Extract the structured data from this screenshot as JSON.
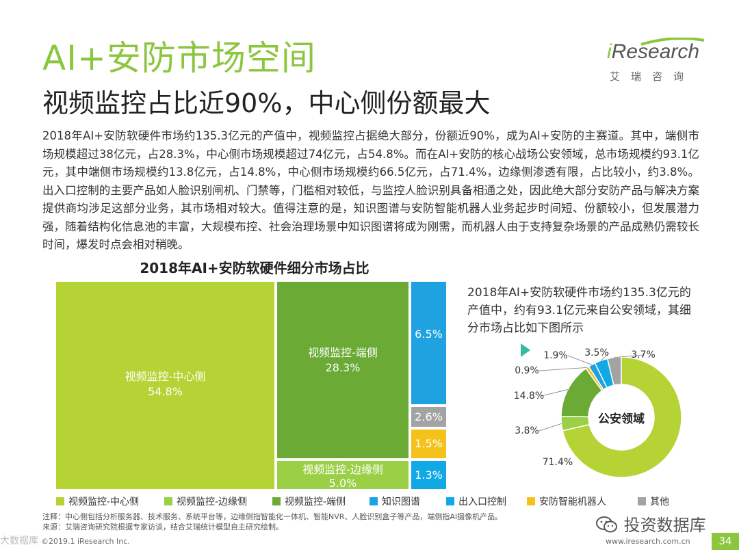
{
  "header": {
    "title": "AI+安防市场空间",
    "subtitle": "视频监控占比近90%，中心侧份额最大",
    "logo_text_i": "i",
    "logo_text_rest": "Research",
    "logo_cn": "艾瑞咨询"
  },
  "paragraph": "2018年AI+安防软硬件市场约135.3亿元的产值中，视频监控占据绝大部分，份额近90%，成为AI+安防的主赛道。其中，端侧市场规模超过38亿元，占28.3%，中心侧市场规模超过74亿元，占54.8%。而在AI+安防的核心战场公安领域，总市场规模约93.1亿元，其中端侧市场规模约13.8亿元，占14.8%，中心侧市场规模约66.5亿元，占71.4%，边缘侧渗透有限，占比较小，约3.8%。出入口控制的主要产品如人脸识别闸机、门禁等，门槛相对较低，与监控人脸识别具备相通之处，因此绝大部分安防产品与解决方案提供商均涉足这部分业务，其市场相对较大。值得注意的是，知识图谱与安防智能机器人业务起步时间短、份额较小，但发展潜力强，随着结构化信息池的丰富，大规模布控、社会治理场景中知识图谱将成为刚需，而机器人由于支持复杂场景的产品成熟仍需较长时间，爆发时点会相对稍晚。",
  "chart_data": [
    {
      "type": "treemap",
      "title": "2018年AI+安防软硬件细分市场占比",
      "items": [
        {
          "name": "视频监控-中心侧",
          "value": 54.8,
          "label": "54.8%",
          "color": "#b5d334"
        },
        {
          "name": "视频监控-端侧",
          "value": 28.3,
          "label": "28.3%",
          "color": "#6aaa35"
        },
        {
          "name": "视频监控-边缘侧",
          "value": 5.0,
          "label": "5.0%",
          "color": "#9bcf45"
        },
        {
          "name": "知识图谱",
          "value": 6.5,
          "label": "6.5%",
          "color": "#1fa3e0"
        },
        {
          "name": "其他",
          "value": 2.6,
          "label": "2.6%",
          "color": "#a3a3a3"
        },
        {
          "name": "安防智能机器人",
          "value": 1.5,
          "label": "1.5%",
          "color": "#f5c21b"
        },
        {
          "name": "出入口控制",
          "value": 1.3,
          "label": "1.3%",
          "color": "#10a9e5"
        }
      ]
    },
    {
      "type": "pie",
      "center_label": "公安领域",
      "slices": [
        {
          "name": "视频监控-中心侧",
          "value": 71.4,
          "label": "71.4%",
          "color": "#b5d334"
        },
        {
          "name": "视频监控-边缘侧",
          "value": 3.8,
          "label": "3.8%",
          "color": "#9bcf45"
        },
        {
          "name": "视频监控-端侧",
          "value": 14.8,
          "label": "14.8%",
          "color": "#6aaa35"
        },
        {
          "name": "安防智能机器人",
          "value": 0.9,
          "label": "0.9%",
          "color": "#f5c21b"
        },
        {
          "name": "知识图谱",
          "value": 1.9,
          "label": "1.9%",
          "color": "#1fa3e0"
        },
        {
          "name": "出入口控制",
          "value": 3.5,
          "label": "3.5%",
          "color": "#10a9e5"
        },
        {
          "name": "其他",
          "value": 3.7,
          "label": "3.7%",
          "color": "#a3a3a3"
        }
      ]
    }
  ],
  "right_text": "2018年AI+安防软硬件市场约135.3亿元的产值中，约有93.1亿元来自公安领域，其细分市场占比如下图所示",
  "legend": [
    {
      "label": "视频监控-中心侧",
      "color": "#b5d334"
    },
    {
      "label": "视频监控-边缘侧",
      "color": "#9bcf45"
    },
    {
      "label": "视频监控-端侧",
      "color": "#6aaa35"
    },
    {
      "label": "知识图谱",
      "color": "#1fa3e0"
    },
    {
      "label": "出入口控制",
      "color": "#10a9e5"
    },
    {
      "label": "安防智能机器人",
      "color": "#f5c21b"
    },
    {
      "label": "其他",
      "color": "#a3a3a3"
    }
  ],
  "notes": {
    "note": "注释：中心侧包括分析服务器、技术服务、系统平台等，边缘侧指智能化一体机、智能NVR、人脸识别盒子等产品，端侧指AI摄像机产品。",
    "source": "来源：艾瑞咨询研究院根据专家访谈，结合艾瑞统计模型自主研究绘制。"
  },
  "footer": {
    "left": "©2019.1 iResearch Inc.",
    "url": "www.iresearch.com.cn",
    "page": "34",
    "watermark": "投资数据库",
    "watermark_left": "大数据库"
  }
}
